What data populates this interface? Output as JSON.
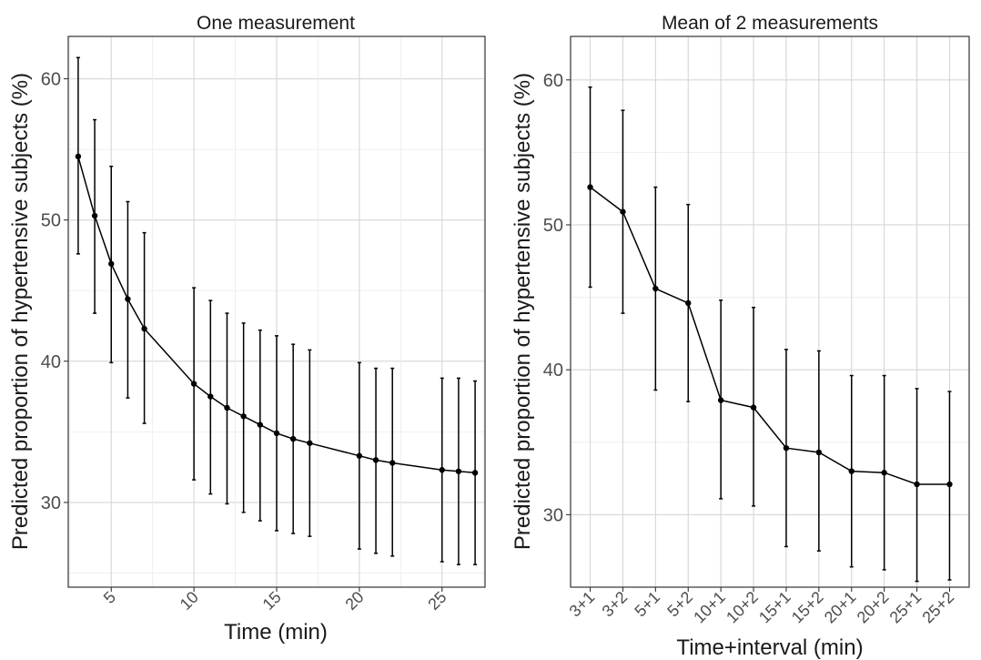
{
  "chart_data": [
    {
      "type": "line",
      "title": "One measurement",
      "xlabel": "Time (min)",
      "ylabel": "Predicted proportion of hypertensive subjects (%)",
      "xlim": [
        2.4,
        27.6
      ],
      "ylim": [
        24,
        63
      ],
      "x_ticks": [
        5,
        10,
        15,
        20,
        25
      ],
      "y_ticks": [
        30,
        40,
        50,
        60
      ],
      "grid": true,
      "series": [
        {
          "x": [
            3,
            4,
            5,
            6,
            7,
            10,
            11,
            12,
            13,
            14,
            15,
            16,
            17,
            20,
            21,
            22,
            25,
            26,
            27
          ],
          "values": [
            54.5,
            50.3,
            46.9,
            44.4,
            42.3,
            38.4,
            37.5,
            36.7,
            36.1,
            35.5,
            34.9,
            34.5,
            34.2,
            33.3,
            33.0,
            32.8,
            32.3,
            32.2,
            32.1
          ],
          "lower": [
            47.6,
            43.4,
            39.9,
            37.4,
            35.6,
            31.6,
            30.6,
            29.9,
            29.3,
            28.7,
            28.0,
            27.8,
            27.6,
            26.7,
            26.4,
            26.2,
            25.8,
            25.6,
            25.6
          ],
          "upper": [
            61.5,
            57.1,
            53.8,
            51.3,
            49.1,
            45.2,
            44.3,
            43.4,
            42.7,
            42.2,
            41.8,
            41.2,
            40.8,
            39.9,
            39.5,
            39.5,
            38.8,
            38.8,
            38.6
          ]
        }
      ]
    },
    {
      "type": "line",
      "title": "Mean of 2 measurements",
      "xlabel": "Time+interval (min)",
      "ylabel": "Predicted proportion of hypertensive subjects (%)",
      "categories": [
        "3+1",
        "3+2",
        "5+1",
        "5+2",
        "10+1",
        "10+2",
        "15+1",
        "15+2",
        "20+1",
        "20+2",
        "25+1",
        "25+2"
      ],
      "ylim": [
        25,
        63
      ],
      "y_ticks": [
        30,
        40,
        50,
        60
      ],
      "grid": true,
      "series": [
        {
          "values": [
            52.6,
            50.9,
            45.6,
            44.6,
            37.9,
            37.4,
            34.6,
            34.3,
            33.0,
            32.9,
            32.1,
            32.1
          ],
          "lower": [
            45.7,
            43.9,
            38.6,
            37.8,
            31.1,
            30.6,
            27.8,
            27.5,
            26.4,
            26.2,
            25.4,
            25.5
          ],
          "upper": [
            59.5,
            57.9,
            52.6,
            51.4,
            44.8,
            44.3,
            41.4,
            41.3,
            39.6,
            39.6,
            38.7,
            38.5
          ]
        }
      ]
    }
  ]
}
